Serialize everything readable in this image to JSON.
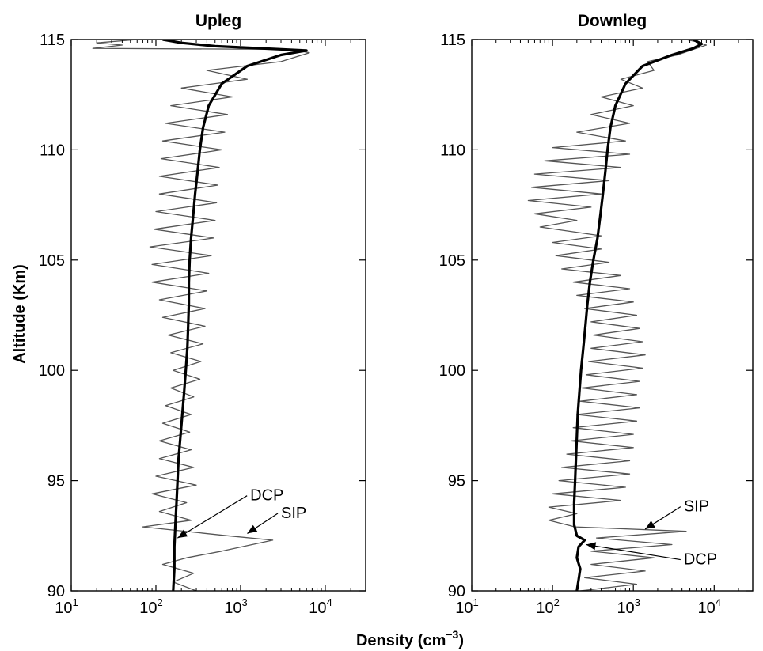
{
  "chart_data": [
    {
      "type": "line",
      "title": "Upleg",
      "xscale": "log",
      "xlim": [
        10,
        30000
      ],
      "ylim": [
        90,
        115
      ],
      "xticks": [
        {
          "value": 10,
          "base": "10",
          "exp": "1"
        },
        {
          "value": 100,
          "base": "10",
          "exp": "2"
        },
        {
          "value": 1000,
          "base": "10",
          "exp": "3"
        },
        {
          "value": 10000,
          "base": "10",
          "exp": "4"
        }
      ],
      "yticks": [
        "90",
        "95",
        "100",
        "105",
        "110",
        "115"
      ],
      "series": [
        {
          "color": "#555555",
          "style": "thin oscillating",
          "points": [
            [
              300,
              90.0
            ],
            [
              160,
              90.4
            ],
            [
              280,
              90.8
            ],
            [
              120,
              91.2
            ],
            [
              230,
              91.5
            ],
            [
              600,
              91.8
            ],
            [
              2400,
              92.3
            ],
            [
              700,
              92.5
            ],
            [
              70,
              92.9
            ],
            [
              260,
              93.2
            ],
            [
              110,
              93.6
            ],
            [
              230,
              94.0
            ],
            [
              90,
              94.4
            ],
            [
              300,
              94.8
            ],
            [
              100,
              95.2
            ],
            [
              280,
              95.6
            ],
            [
              110,
              96.0
            ],
            [
              260,
              96.4
            ],
            [
              110,
              96.8
            ],
            [
              250,
              97.2
            ],
            [
              120,
              97.6
            ],
            [
              260,
              98.0
            ],
            [
              130,
              98.4
            ],
            [
              280,
              98.8
            ],
            [
              150,
              99.2
            ],
            [
              330,
              99.6
            ],
            [
              160,
              100.0
            ],
            [
              340,
              100.4
            ],
            [
              150,
              100.8
            ],
            [
              360,
              101.2
            ],
            [
              140,
              101.6
            ],
            [
              380,
              102.0
            ],
            [
              120,
              102.4
            ],
            [
              380,
              102.8
            ],
            [
              110,
              103.2
            ],
            [
              400,
              103.6
            ],
            [
              90,
              104.0
            ],
            [
              420,
              104.4
            ],
            [
              90,
              104.8
            ],
            [
              450,
              105.2
            ],
            [
              85,
              105.6
            ],
            [
              480,
              106.0
            ],
            [
              95,
              106.4
            ],
            [
              500,
              106.8
            ],
            [
              100,
              107.2
            ],
            [
              520,
              107.6
            ],
            [
              110,
              108.0
            ],
            [
              540,
              108.4
            ],
            [
              110,
              108.8
            ],
            [
              560,
              109.2
            ],
            [
              115,
              109.6
            ],
            [
              600,
              110.0
            ],
            [
              120,
              110.4
            ],
            [
              650,
              110.8
            ],
            [
              130,
              111.2
            ],
            [
              700,
              111.6
            ],
            [
              150,
              112.0
            ],
            [
              800,
              112.4
            ],
            [
              200,
              112.8
            ],
            [
              1200,
              113.2
            ],
            [
              400,
              113.6
            ],
            [
              3000,
              114.0
            ],
            [
              6500,
              114.4
            ],
            [
              4000,
              114.55
            ],
            [
              18,
              114.6
            ],
            [
              40,
              114.75
            ],
            [
              20,
              114.85
            ],
            [
              60,
              115.0
            ]
          ]
        },
        {
          "color": "#000000",
          "style": "thick",
          "points": [
            [
              160,
              90.0
            ],
            [
              165,
              91.0
            ],
            [
              165,
              92.0
            ],
            [
              170,
              93.0
            ],
            [
              175,
              94.0
            ],
            [
              180,
              95.0
            ],
            [
              185,
              96.0
            ],
            [
              195,
              97.0
            ],
            [
              205,
              98.0
            ],
            [
              215,
              99.0
            ],
            [
              225,
              100.0
            ],
            [
              235,
              101.0
            ],
            [
              240,
              102.0
            ],
            [
              245,
              103.0
            ],
            [
              245,
              104.0
            ],
            [
              250,
              105.0
            ],
            [
              260,
              106.0
            ],
            [
              275,
              107.0
            ],
            [
              290,
              108.0
            ],
            [
              310,
              109.0
            ],
            [
              330,
              110.0
            ],
            [
              360,
              111.0
            ],
            [
              420,
              112.0
            ],
            [
              600,
              113.0
            ],
            [
              1200,
              113.8
            ],
            [
              3000,
              114.3
            ],
            [
              6000,
              114.5
            ],
            [
              500,
              114.7
            ],
            [
              200,
              114.85
            ],
            [
              120,
              115.0
            ]
          ]
        }
      ],
      "annotations": [
        {
          "text": "DCP",
          "x": 1300,
          "y": 94.1,
          "arrow_to": [
            180,
            92.4
          ]
        },
        {
          "text": "SIP",
          "x": 3000,
          "y": 93.3,
          "arrow_to": [
            1200,
            92.6
          ]
        }
      ]
    },
    {
      "type": "line",
      "title": "Downleg",
      "xscale": "log",
      "xlim": [
        10,
        30000
      ],
      "ylim": [
        90,
        115
      ],
      "xticks": [
        {
          "value": 10,
          "base": "10",
          "exp": "1"
        },
        {
          "value": 100,
          "base": "10",
          "exp": "2"
        },
        {
          "value": 1000,
          "base": "10",
          "exp": "3"
        },
        {
          "value": 10000,
          "base": "10",
          "exp": "4"
        }
      ],
      "yticks": [
        "90",
        "95",
        "100",
        "105",
        "110",
        "115"
      ],
      "series": [
        {
          "color": "#555555",
          "style": "thin oscillating",
          "points": [
            [
              220,
              90.0
            ],
            [
              1100,
              90.3
            ],
            [
              250,
              90.6
            ],
            [
              1400,
              90.9
            ],
            [
              300,
              91.2
            ],
            [
              1800,
              91.5
            ],
            [
              300,
              91.8
            ],
            [
              3000,
              92.1
            ],
            [
              350,
              92.4
            ],
            [
              4500,
              92.7
            ],
            [
              190,
              92.9
            ],
            [
              90,
              93.2
            ],
            [
              200,
              93.5
            ],
            [
              90,
              93.8
            ],
            [
              700,
              94.1
            ],
            [
              100,
              94.4
            ],
            [
              800,
              94.7
            ],
            [
              120,
              95.0
            ],
            [
              900,
              95.3
            ],
            [
              130,
              95.6
            ],
            [
              900,
              95.9
            ],
            [
              150,
              96.2
            ],
            [
              1000,
              96.5
            ],
            [
              170,
              96.8
            ],
            [
              1000,
              97.1
            ],
            [
              180,
              97.4
            ],
            [
              1100,
              97.7
            ],
            [
              200,
              98.0
            ],
            [
              1200,
              98.3
            ],
            [
              220,
              98.6
            ],
            [
              1100,
              98.9
            ],
            [
              230,
              99.2
            ],
            [
              1200,
              99.5
            ],
            [
              260,
              99.8
            ],
            [
              1300,
              100.1
            ],
            [
              280,
              100.4
            ],
            [
              1400,
              100.7
            ],
            [
              300,
              101.0
            ],
            [
              1300,
              101.3
            ],
            [
              320,
              101.6
            ],
            [
              1200,
              101.9
            ],
            [
              300,
              102.2
            ],
            [
              1100,
              102.5
            ],
            [
              250,
              102.8
            ],
            [
              1000,
              103.1
            ],
            [
              200,
              103.4
            ],
            [
              900,
              103.7
            ],
            [
              180,
              104.0
            ],
            [
              700,
              104.3
            ],
            [
              130,
              104.6
            ],
            [
              500,
              104.9
            ],
            [
              110,
              105.2
            ],
            [
              400,
              105.5
            ],
            [
              100,
              105.8
            ],
            [
              400,
              106.1
            ],
            [
              70,
              106.5
            ],
            [
              200,
              106.8
            ],
            [
              60,
              107.1
            ],
            [
              300,
              107.4
            ],
            [
              50,
              107.7
            ],
            [
              400,
              108.0
            ],
            [
              55,
              108.3
            ],
            [
              500,
              108.6
            ],
            [
              60,
              108.9
            ],
            [
              700,
              109.2
            ],
            [
              80,
              109.5
            ],
            [
              900,
              109.8
            ],
            [
              100,
              110.1
            ],
            [
              800,
              110.4
            ],
            [
              200,
              110.8
            ],
            [
              900,
              111.2
            ],
            [
              300,
              111.6
            ],
            [
              1000,
              112.0
            ],
            [
              400,
              112.4
            ],
            [
              1300,
              112.8
            ],
            [
              700,
              113.2
            ],
            [
              1800,
              113.6
            ],
            [
              1500,
              114.0
            ],
            [
              3500,
              114.3
            ],
            [
              5500,
              114.55
            ],
            [
              8000,
              114.75
            ],
            [
              6000,
              114.9
            ],
            [
              4500,
              115.0
            ]
          ]
        },
        {
          "color": "#000000",
          "style": "thick",
          "points": [
            [
              200,
              90.0
            ],
            [
              210,
              90.5
            ],
            [
              220,
              91.0
            ],
            [
              200,
              91.5
            ],
            [
              210,
              92.0
            ],
            [
              250,
              92.3
            ],
            [
              200,
              92.5
            ],
            [
              185,
              93.0
            ],
            [
              185,
              94.0
            ],
            [
              190,
              95.0
            ],
            [
              195,
              96.0
            ],
            [
              200,
              97.0
            ],
            [
              205,
              98.0
            ],
            [
              215,
              99.0
            ],
            [
              225,
              100.0
            ],
            [
              240,
              101.0
            ],
            [
              255,
              102.0
            ],
            [
              270,
              103.0
            ],
            [
              290,
              104.0
            ],
            [
              320,
              105.0
            ],
            [
              360,
              106.0
            ],
            [
              390,
              107.0
            ],
            [
              420,
              108.0
            ],
            [
              450,
              109.0
            ],
            [
              480,
              110.0
            ],
            [
              520,
              111.0
            ],
            [
              600,
              112.0
            ],
            [
              800,
              113.0
            ],
            [
              1300,
              113.8
            ],
            [
              3000,
              114.3
            ],
            [
              5500,
              114.6
            ],
            [
              7000,
              114.8
            ],
            [
              5500,
              115.0
            ]
          ]
        }
      ],
      "annotations": [
        {
          "text": "SIP",
          "x": 4200,
          "y": 93.6,
          "arrow_to": [
            1400,
            92.8
          ]
        },
        {
          "text": "DCP",
          "x": 4200,
          "y": 91.2,
          "arrow_to": [
            260,
            92.1
          ]
        }
      ]
    }
  ],
  "shared": {
    "ylabel": "Altitude (Km)",
    "xlabel": "Density (cm",
    "xlabel_exp": "−3",
    "xlabel_close": ")"
  }
}
